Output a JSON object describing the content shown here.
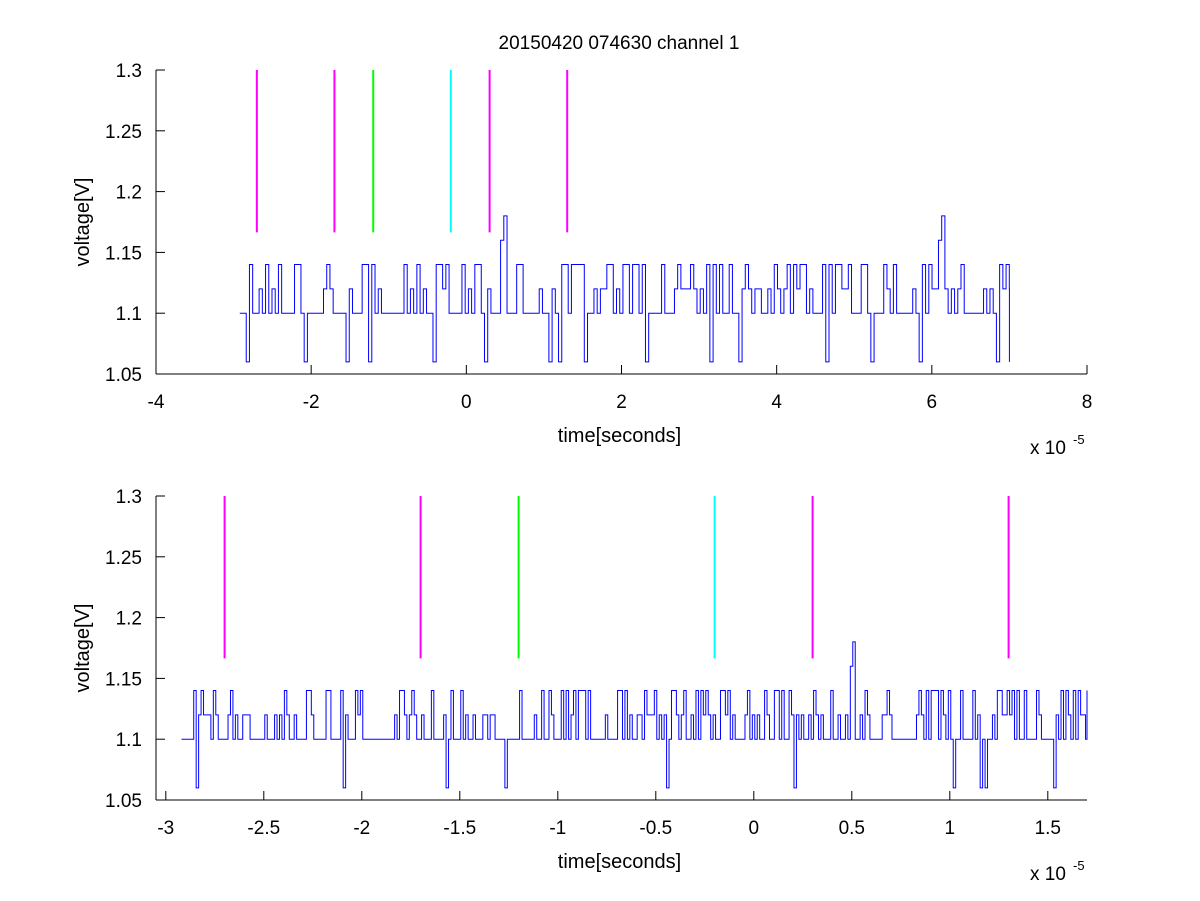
{
  "figure": {
    "title": "20150420 074630 channel 1",
    "background": "#ffffff"
  },
  "chart_data": [
    {
      "type": "line",
      "title": "20150420 074630 channel 1",
      "xlabel": "time[seconds]",
      "ylabel": "voltage[V]",
      "x_exponent_label": "x 10",
      "x_exponent_power": "-5",
      "xlim": [
        -4,
        8
      ],
      "ylim": [
        1.05,
        1.3
      ],
      "xticks": [
        -4,
        -2,
        0,
        2,
        4,
        6,
        8
      ],
      "xtick_labels": [
        "-4",
        "-2",
        "0",
        "2",
        "4",
        "6",
        "8"
      ],
      "yticks": [
        1.05,
        1.1,
        1.15,
        1.2,
        1.25,
        1.3
      ],
      "ytick_labels": [
        "1.05",
        "1.1",
        "1.15",
        "1.2",
        "1.25",
        "1.3"
      ],
      "grid": false,
      "signal": {
        "color": "#0000ff",
        "x_start": -2.92,
        "x_end": 7.0,
        "baseline": 1.1,
        "levels": [
          1.06,
          1.1,
          1.12,
          1.14
        ],
        "spikes": [
          {
            "x": 0.5,
            "y": 1.18
          },
          {
            "x": 6.12,
            "y": 1.18
          }
        ],
        "dips": [
          -2.85,
          -2.07,
          -1.57,
          -1.27,
          -0.43,
          0.23,
          1.05,
          1.2,
          1.52,
          2.32,
          3.12,
          3.52,
          4.62,
          5.2,
          5.82,
          6.1,
          6.82,
          7.0
        ]
      },
      "markers": [
        {
          "x": -2.7,
          "color": "#ff00ff"
        },
        {
          "x": -1.7,
          "color": "#ff00ff"
        },
        {
          "x": -1.2,
          "color": "#00ff00"
        },
        {
          "x": -0.2,
          "color": "#00ffff"
        },
        {
          "x": 0.3,
          "color": "#ff00ff"
        },
        {
          "x": 1.3,
          "color": "#ff00ff"
        }
      ],
      "marker_y_range": [
        1.1665,
        1.3
      ]
    },
    {
      "type": "line",
      "title": "",
      "xlabel": "time[seconds]",
      "ylabel": "voltage[V]",
      "x_exponent_label": "x 10",
      "x_exponent_power": "-5",
      "xlim": [
        -3.05,
        1.7
      ],
      "ylim": [
        1.05,
        1.3
      ],
      "xticks": [
        -3,
        -2.5,
        -2,
        -1.5,
        -1,
        -0.5,
        0,
        0.5,
        1,
        1.5
      ],
      "xtick_labels": [
        "-3",
        "-2.5",
        "-2",
        "-1.5",
        "-1",
        "-0.5",
        "0",
        "0.5",
        "1",
        "1.5"
      ],
      "yticks": [
        1.05,
        1.1,
        1.15,
        1.2,
        1.25,
        1.3
      ],
      "ytick_labels": [
        "1.05",
        "1.1",
        "1.15",
        "1.2",
        "1.25",
        "1.3"
      ],
      "grid": false,
      "signal": {
        "color": "#0000ff",
        "x_start": -2.92,
        "x_end": 1.7,
        "baseline": 1.1,
        "levels": [
          1.06,
          1.1,
          1.12,
          1.14
        ],
        "spikes": [
          {
            "x": 0.5,
            "y": 1.18
          }
        ],
        "dips": [
          -2.85,
          -2.1,
          -1.57,
          -1.27,
          -0.45,
          0.21,
          1.02,
          1.15,
          1.18,
          1.53
        ]
      },
      "markers": [
        {
          "x": -2.7,
          "color": "#ff00ff"
        },
        {
          "x": -1.7,
          "color": "#ff00ff"
        },
        {
          "x": -1.2,
          "color": "#00ff00"
        },
        {
          "x": -0.2,
          "color": "#00ffff"
        },
        {
          "x": 0.3,
          "color": "#ff00ff"
        },
        {
          "x": 1.3,
          "color": "#ff00ff"
        }
      ],
      "marker_y_range": [
        1.1665,
        1.3
      ]
    }
  ]
}
